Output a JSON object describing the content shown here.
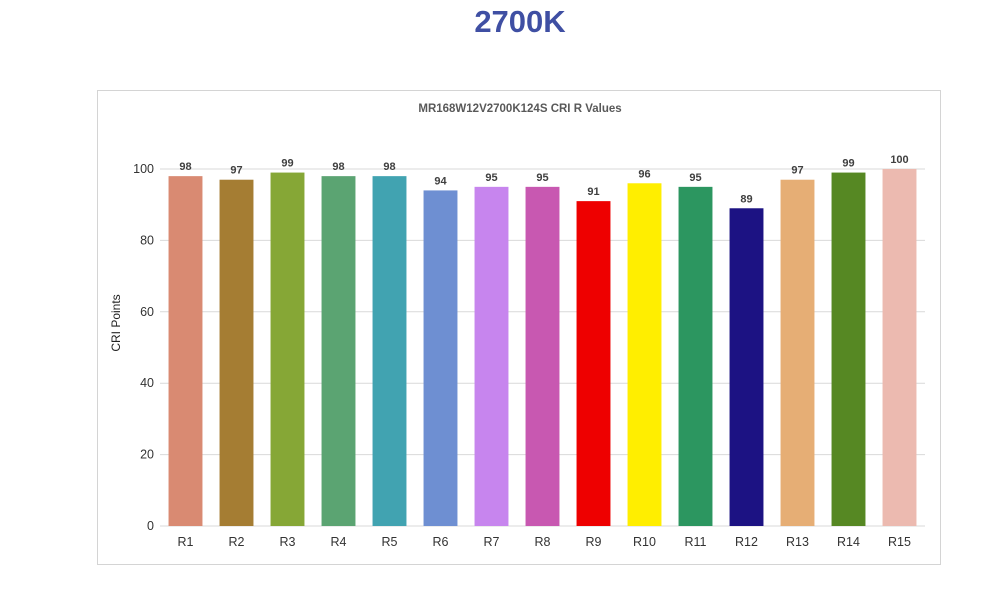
{
  "heading": "2700K",
  "colors": {
    "heading": "#3f4fa3",
    "gridline": "#d9d9d9",
    "frame_border": "#d4d4d4"
  },
  "chart_data": {
    "type": "bar",
    "title": "MR168W12V2700K124S CRI R Values",
    "xlabel": "",
    "ylabel": "CRI Points",
    "ylim": [
      0,
      100
    ],
    "yticks": [
      0,
      20,
      40,
      60,
      80,
      100
    ],
    "grid": true,
    "legend": "none",
    "categories": [
      "R1",
      "R2",
      "R3",
      "R4",
      "R5",
      "R6",
      "R7",
      "R8",
      "R9",
      "R10",
      "R11",
      "R12",
      "R13",
      "R14",
      "R15"
    ],
    "values": [
      98,
      97,
      99,
      98,
      98,
      94,
      95,
      95,
      91,
      96,
      95,
      89,
      97,
      99,
      100
    ],
    "bar_colors": [
      "#d98a72",
      "#a57d33",
      "#86a736",
      "#5ba472",
      "#41a3b1",
      "#6e8fd2",
      "#c785ee",
      "#c858b1",
      "#ee0000",
      "#ffee00",
      "#2c9660",
      "#1c1283",
      "#e6ae75",
      "#568823",
      "#ecbab0"
    ]
  }
}
